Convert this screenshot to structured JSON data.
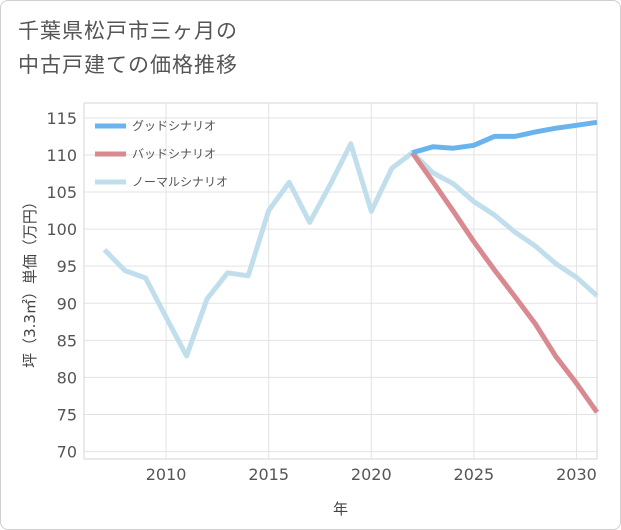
{
  "title_lines": [
    "千葉県松戸市三ヶ月の",
    "中古戸建ての価格推移"
  ],
  "chart_data": {
    "type": "line",
    "xlabel": "年",
    "ylabel": "坪（3.3㎡）単価（万円）",
    "xlim": [
      2006,
      2031
    ],
    "ylim": [
      69,
      117
    ],
    "x_ticks": [
      2010,
      2015,
      2020,
      2025,
      2030
    ],
    "y_ticks": [
      70,
      75,
      80,
      85,
      90,
      95,
      100,
      105,
      110,
      115
    ],
    "legend_position": "top-left",
    "series": [
      {
        "name": "グッドシナリオ",
        "color": "#6ab4ee",
        "x": [
          2022,
          2023,
          2024,
          2025,
          2026,
          2027,
          2028,
          2029,
          2030,
          2031
        ],
        "y": [
          110.3,
          111.1,
          110.9,
          111.3,
          112.5,
          112.5,
          113.1,
          113.6,
          114.0,
          114.4
        ]
      },
      {
        "name": "バッドシナリオ",
        "color": "#d98990",
        "x": [
          2022,
          2023,
          2024,
          2025,
          2026,
          2027,
          2028,
          2029,
          2030,
          2031
        ],
        "y": [
          110.3,
          106.4,
          102.4,
          98.3,
          94.5,
          90.9,
          87.2,
          82.8,
          79.2,
          75.3
        ]
      },
      {
        "name": "ノーマルシナリオ",
        "color": "#c1deec",
        "x": [
          2007,
          2008,
          2009,
          2010,
          2011,
          2012,
          2013,
          2014,
          2015,
          2016,
          2017,
          2018,
          2019,
          2020,
          2021,
          2022,
          2023,
          2024,
          2025,
          2026,
          2027,
          2028,
          2029,
          2030,
          2031
        ],
        "y": [
          97.2,
          94.4,
          93.4,
          88.1,
          82.9,
          90.6,
          94.1,
          93.7,
          102.5,
          106.3,
          100.9,
          106.0,
          111.5,
          102.4,
          108.2,
          110.3,
          107.6,
          106.1,
          103.7,
          101.9,
          99.6,
          97.7,
          95.3,
          93.5,
          91.0
        ]
      }
    ]
  }
}
